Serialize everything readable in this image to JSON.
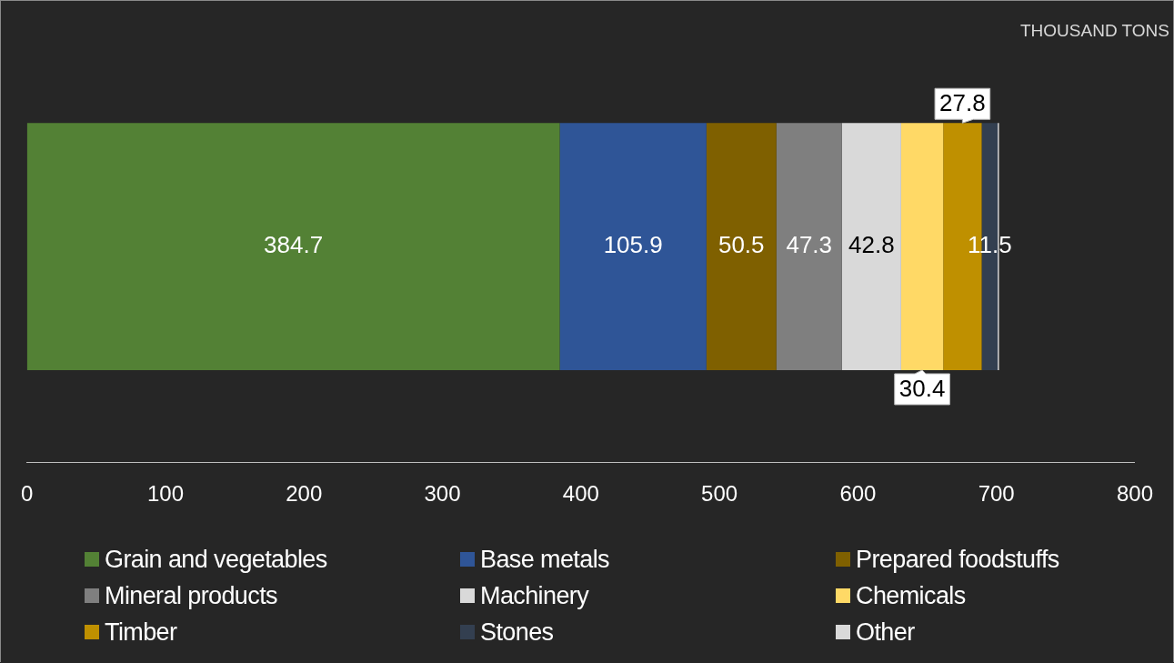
{
  "chart_data": {
    "type": "bar",
    "orientation": "horizontal",
    "stacked": true,
    "categories": [
      null
    ],
    "annotations": [
      "THOUSAND TONS"
    ],
    "xlim": [
      0,
      800
    ],
    "xticks": [
      0,
      100,
      200,
      300,
      400,
      500,
      600,
      700,
      800
    ],
    "grid": false,
    "legend": "bottom",
    "series": [
      {
        "name": "Grain and vegetables",
        "color": "#538135",
        "values": [
          384.7
        ],
        "value_labels": [
          "384.7"
        ]
      },
      {
        "name": "Base metals",
        "color": "#2f5597",
        "values": [
          105.9
        ],
        "value_labels": [
          "105.9"
        ]
      },
      {
        "name": "Prepared foodstuffs",
        "color": "#7f6000",
        "values": [
          50.5
        ],
        "value_labels": [
          "50.5"
        ]
      },
      {
        "name": "Mineral products",
        "color": "#7f7f7f",
        "values": [
          47.3
        ],
        "value_labels": [
          "47.3"
        ]
      },
      {
        "name": "Machinery",
        "color": "#d9d9d9",
        "values": [
          42.8
        ],
        "value_labels": [
          "42.8"
        ]
      },
      {
        "name": "Chemicals",
        "color": "#ffd966",
        "values": [
          30.4
        ],
        "value_labels": [
          "30.4"
        ]
      },
      {
        "name": "Timber",
        "color": "#bf9000",
        "values": [
          27.8
        ],
        "value_labels": [
          "27.8"
        ]
      },
      {
        "name": "Stones",
        "color": "#333f50",
        "values": [
          11.5
        ],
        "value_labels": [
          "11.5"
        ]
      },
      {
        "name": "Other",
        "color": "#d9d9d9",
        "values": [
          1
        ],
        "value_labels": [
          null
        ]
      }
    ]
  }
}
